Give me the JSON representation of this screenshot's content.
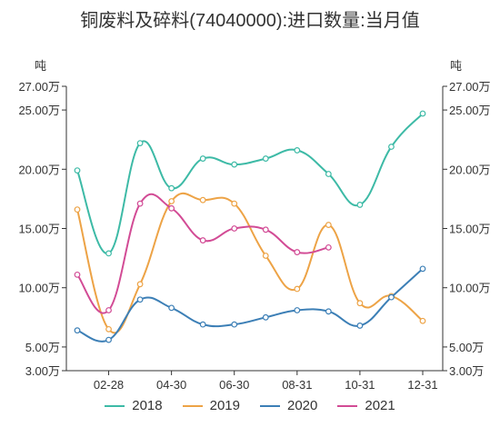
{
  "chart_data": {
    "type": "line",
    "title": "铜废料及碎料(74040000):进口数量:当月值",
    "y_unit_left": "吨",
    "y_unit_right": "吨",
    "ylim": [
      3.0,
      27.0
    ],
    "y_ticks": [
      3.0,
      5.0,
      10.0,
      15.0,
      20.0,
      25.0,
      27.0
    ],
    "y_tick_labels": [
      "3.00万",
      "5.00万",
      "10.00万",
      "15.00万",
      "20.00万",
      "25.00万",
      "27.00万"
    ],
    "x_months": [
      "01-31",
      "02-28",
      "03-31",
      "04-30",
      "05-31",
      "06-30",
      "07-31",
      "08-31",
      "09-30",
      "10-31",
      "11-30",
      "12-31"
    ],
    "x_tick_labels": [
      "02-28",
      "04-30",
      "06-30",
      "08-31",
      "10-31",
      "12-31"
    ],
    "series": [
      {
        "name": "2018",
        "color": "#3dbaa6",
        "values": [
          19.9,
          12.9,
          22.2,
          18.4,
          20.9,
          20.4,
          20.9,
          21.6,
          19.6,
          17.0,
          21.9,
          24.7
        ]
      },
      {
        "name": "2019",
        "color": "#eda346",
        "values": [
          16.6,
          6.5,
          10.3,
          17.3,
          17.4,
          17.1,
          12.7,
          9.9,
          15.3,
          8.7,
          9.3,
          7.2
        ]
      },
      {
        "name": "2020",
        "color": "#3c7fb6",
        "values": [
          6.4,
          5.6,
          9.0,
          8.3,
          6.9,
          6.9,
          7.5,
          8.1,
          8.0,
          6.8,
          9.2,
          11.6
        ]
      },
      {
        "name": "2021",
        "color": "#d24b95",
        "values": [
          11.1,
          8.1,
          17.1,
          16.7,
          14.0,
          15.0,
          14.9,
          13.0,
          13.4
        ]
      }
    ]
  }
}
